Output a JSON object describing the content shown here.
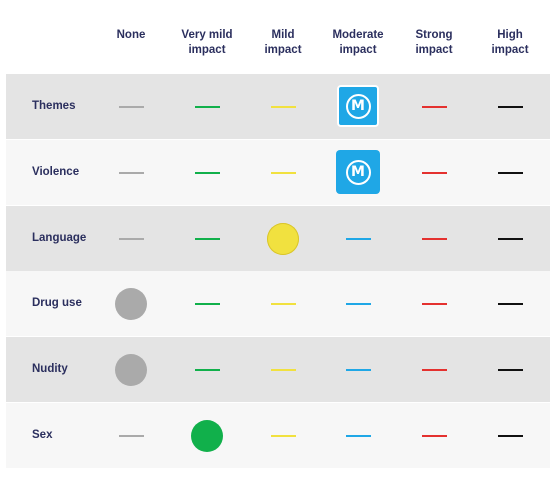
{
  "columns": [
    "None",
    "Very mild impact",
    "Mild impact",
    "Moderate impact",
    "Strong impact",
    "High impact"
  ],
  "column_lines": [
    [
      "None"
    ],
    [
      "Very mild",
      "impact"
    ],
    [
      "Mild",
      "impact"
    ],
    [
      "Moderate",
      "impact"
    ],
    [
      "Strong",
      "impact"
    ],
    [
      "High",
      "impact"
    ]
  ],
  "colors": {
    "none": "#aaaaaa",
    "very_mild": "#11b04b",
    "mild": "#f1e13f",
    "moderate": "#1fa7e6",
    "strong": "#e4312f",
    "high": "#111111",
    "label": "#2b2f5e",
    "row_shaded": "#e4e4e4",
    "row_light": "#f7f7f7"
  },
  "rows": [
    {
      "label": "Themes",
      "rating": "Moderate impact",
      "rating_index": 3,
      "badge_letter": "M"
    },
    {
      "label": "Violence",
      "rating": "Moderate impact",
      "rating_index": 3,
      "badge_letter": "M"
    },
    {
      "label": "Language",
      "rating": "Mild impact",
      "rating_index": 2,
      "badge_letter": ""
    },
    {
      "label": "Drug use",
      "rating": "None",
      "rating_index": 0,
      "badge_letter": ""
    },
    {
      "label": "Nudity",
      "rating": "None",
      "rating_index": 0,
      "badge_letter": ""
    },
    {
      "label": "Sex",
      "rating": "Very mild impact",
      "rating_index": 1,
      "badge_letter": ""
    }
  ]
}
